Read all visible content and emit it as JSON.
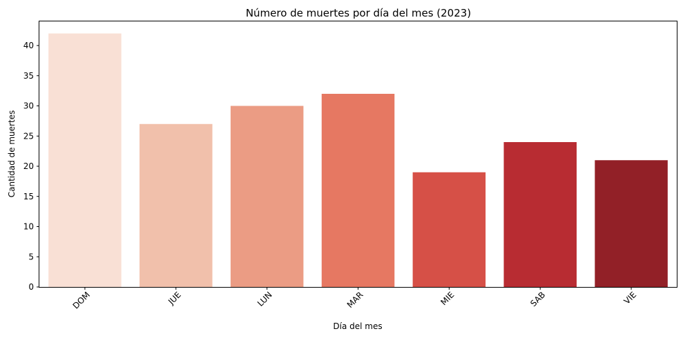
{
  "chart_data": {
    "type": "bar",
    "title": "Número de muertes por día del mes (2023)",
    "xlabel": "Día del mes",
    "ylabel": "Cantidad de muertes",
    "categories": [
      "DOM",
      "JUE",
      "LUN",
      "MAR",
      "MIE",
      "SAB",
      "VIE"
    ],
    "values": [
      42,
      27,
      30,
      32,
      19,
      24,
      21
    ],
    "colors": [
      "#f9e0d5",
      "#f1c0ab",
      "#eb9c84",
      "#e67862",
      "#d65047",
      "#b82c32",
      "#922027"
    ],
    "ylim": [
      0,
      44
    ],
    "yticks": [
      0,
      5,
      10,
      15,
      20,
      25,
      30,
      35,
      40
    ],
    "xtick_rotation": 45,
    "grid": false,
    "legend": "none"
  }
}
